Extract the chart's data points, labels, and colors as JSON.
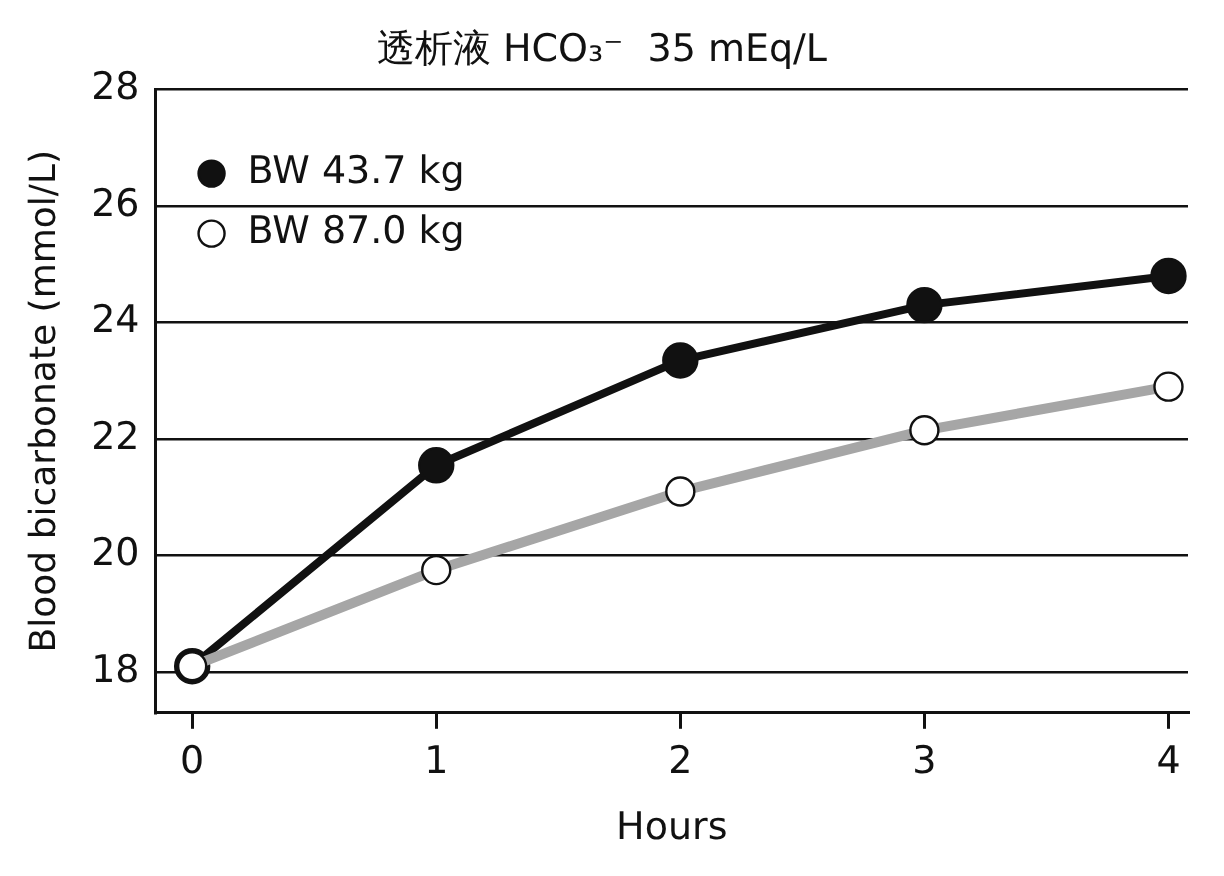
{
  "chart_data": {
    "type": "line",
    "title": "透析液 HCO₃⁻  35 mEq/L",
    "xlabel": "Hours",
    "ylabel": "Blood bicarbonate (mmol/L)",
    "x": [
      0,
      1,
      2,
      3,
      4
    ],
    "series": [
      {
        "name": "BW 43.7 kg",
        "color": "#111111",
        "values": [
          18.1,
          21.55,
          23.35,
          24.3,
          24.8
        ],
        "marker": "circle"
      },
      {
        "name": "BW 87.0 kg",
        "color": "#a6a6a6",
        "values": [
          18.1,
          19.75,
          21.1,
          22.15,
          22.9
        ],
        "marker": "circle"
      }
    ],
    "xlim": [
      -0.15,
      4.08
    ],
    "xticks": [
      0,
      1,
      2,
      3,
      4
    ],
    "ylim": [
      17.3,
      28
    ],
    "yticks": [
      18,
      20,
      22,
      24,
      26,
      28
    ],
    "grid": "y",
    "legend": "top left",
    "line_style": "solid"
  }
}
